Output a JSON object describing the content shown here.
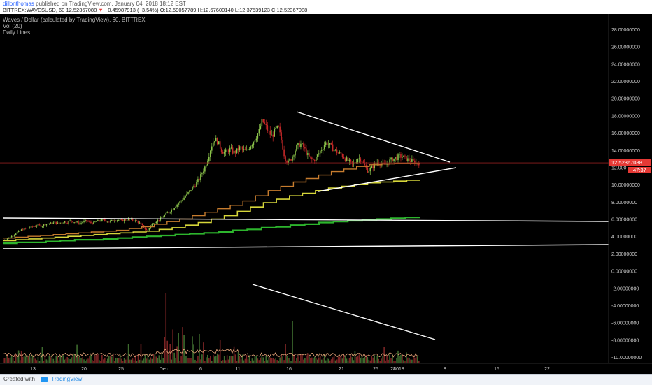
{
  "header": {
    "author": "dillonthomas",
    "published_text": "published on TradingView.com, January 04, 2018 18:12 EST",
    "symbol": "BITTREX:WAVESUSD, 60",
    "last": "12.52367088",
    "change_arrow": "▼",
    "change": "−0.45987913 (−3.54%)",
    "ohlc": "O:12.59057789 H:12.67600140 L:12.37539123 C:12.52367088"
  },
  "legend": {
    "title": "Waves / Dollar (calculated by TradingView), 60, BITTREX",
    "vol": "Vol (20)",
    "daily": "Daily Lines"
  },
  "footer": {
    "created_label": "Created with",
    "brand": "TradingView"
  },
  "colors": {
    "background": "#000000",
    "candle_up": "#8bc34a",
    "candle_down": "#c62828",
    "ma_orange": "#c67c2e",
    "ma_yellow": "#d6d63a",
    "ma_green": "#2db52d",
    "trendline": "#ffffff",
    "price_tag": "#e53935"
  },
  "chart_data": {
    "type": "line",
    "title": "Waves / Dollar (calculated by TradingView), 60, BITTREX",
    "xlabel": "",
    "ylabel": "",
    "x_tick_labels": [
      "13",
      "20",
      "25",
      "Dec",
      "6",
      "11",
      "16",
      "21",
      "25",
      "28",
      "2018",
      "8",
      "15",
      "22"
    ],
    "y_tick_labels": [
      "28.00000000",
      "26.00000000",
      "24.00000000",
      "22.00000000",
      "20.00000000",
      "18.00000000",
      "16.00000000",
      "14.00000000",
      "12.000",
      "10.00000000",
      "8.00000000",
      "6.00000000",
      "4.00000000",
      "2.00000000",
      "0.00000000",
      "-2.00000000",
      "-4.00000000",
      "-6.00000000",
      "-8.00000000",
      "-10.00000000"
    ],
    "ylim": [
      -11,
      29
    ],
    "grid": false,
    "price_tag": "12.52367088",
    "countdown_tag": "47:37",
    "last_price": 12.52,
    "series": [
      {
        "values": [
          3.6,
          3.7,
          3.9,
          4.1,
          4.4,
          4.6,
          4.8,
          4.9,
          5.0,
          5.1,
          5.2,
          5.3,
          5.2,
          5.4,
          5.5,
          5.5,
          5.6,
          5.5,
          5.6,
          5.7,
          5.6,
          5.8,
          5.7,
          5.6,
          5.5,
          5.7,
          5.8,
          5.6,
          5.5,
          5.7,
          5.8,
          5.9,
          5.8,
          5.7,
          5.8,
          5.9,
          5.9,
          5.8,
          5.9,
          6.0,
          5.9,
          5.8,
          5.7,
          5.4,
          5.0,
          4.6,
          5.2,
          5.6,
          5.8,
          6.0,
          6.3,
          6.6,
          6.9,
          7.2,
          7.6,
          7.9,
          8.3,
          8.7,
          9.1,
          9.6,
          10.0,
          10.5,
          11.2,
          12.0,
          13.0,
          14.4,
          15.3,
          15.0,
          14.2,
          13.7,
          13.9,
          14.1,
          13.7,
          13.9,
          14.3,
          14.0,
          13.8,
          14.4,
          14.9,
          15.5,
          16.2,
          17.4,
          16.8,
          16.1,
          15.6,
          16.3,
          16.6,
          15.1,
          13.2,
          12.5,
          13.0,
          13.8,
          14.5,
          14.7,
          14.3,
          13.5,
          13.0,
          12.8,
          13.2,
          13.8,
          14.4,
          14.9,
          14.6,
          14.2,
          13.9,
          13.6,
          13.4,
          13.0,
          12.7,
          12.3,
          12.6,
          13.1,
          12.9,
          12.2,
          11.6,
          11.8,
          12.3,
          12.6,
          12.5,
          12.2,
          12.4,
          12.8,
          13.0,
          13.1,
          13.3,
          13.2,
          13.0,
          12.8,
          12.7,
          12.5,
          12.52
        ]
      },
      {
        "values": [
          3.8,
          3.9,
          4.0,
          4.1,
          4.2,
          4.3,
          4.4,
          4.5,
          4.6,
          4.7,
          4.9,
          5.1,
          5.4,
          5.7,
          6.0,
          6.4,
          6.8,
          7.2,
          7.6,
          8.1,
          8.7,
          9.3,
          9.8,
          10.3,
          10.7,
          11.1,
          11.5,
          11.8,
          12.1,
          12.3,
          12.4,
          12.5,
          12.5
        ]
      },
      {
        "values": [
          3.5,
          3.6,
          3.7,
          3.8,
          3.9,
          4.0,
          4.1,
          4.2,
          4.3,
          4.4,
          4.5,
          4.6,
          4.8,
          5.0,
          5.3,
          5.6,
          6.0,
          6.4,
          6.9,
          7.4,
          7.9,
          8.3,
          8.7,
          9.0,
          9.3,
          9.6,
          9.8,
          10.0,
          10.2,
          10.3,
          10.4,
          10.5
        ]
      },
      {
        "values": [
          3.2,
          3.3,
          3.3,
          3.4,
          3.5,
          3.6,
          3.6,
          3.7,
          3.8,
          3.9,
          4.0,
          4.1,
          4.2,
          4.3,
          4.4,
          4.5,
          4.7,
          4.8,
          5.0,
          5.1,
          5.3,
          5.4,
          5.6,
          5.7,
          5.8,
          5.9,
          6.0,
          6.1,
          6.2
        ]
      }
    ]
  }
}
